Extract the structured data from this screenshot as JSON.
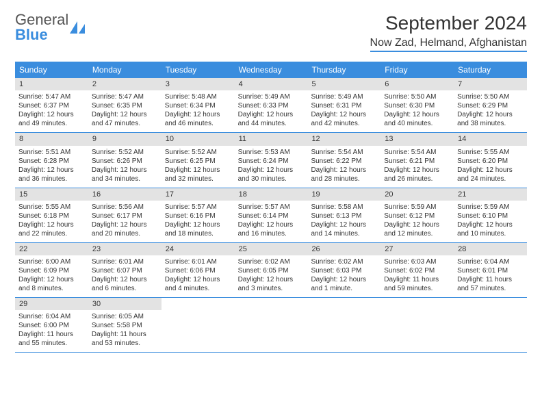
{
  "logo": {
    "text1": "General",
    "text2": "Blue"
  },
  "title": "September 2024",
  "location": "Now Zad, Helmand, Afghanistan",
  "colors": {
    "accent": "#3a8dde",
    "header_bg": "#3a8dde",
    "header_text": "#ffffff",
    "daynum_bg": "#e3e3e3",
    "text": "#333333",
    "background": "#ffffff"
  },
  "day_labels": [
    "Sunday",
    "Monday",
    "Tuesday",
    "Wednesday",
    "Thursday",
    "Friday",
    "Saturday"
  ],
  "calendar": {
    "type": "table",
    "weeks": [
      [
        {
          "n": "1",
          "sunrise": "Sunrise: 5:47 AM",
          "sunset": "Sunset: 6:37 PM",
          "day1": "Daylight: 12 hours",
          "day2": "and 49 minutes."
        },
        {
          "n": "2",
          "sunrise": "Sunrise: 5:47 AM",
          "sunset": "Sunset: 6:35 PM",
          "day1": "Daylight: 12 hours",
          "day2": "and 47 minutes."
        },
        {
          "n": "3",
          "sunrise": "Sunrise: 5:48 AM",
          "sunset": "Sunset: 6:34 PM",
          "day1": "Daylight: 12 hours",
          "day2": "and 46 minutes."
        },
        {
          "n": "4",
          "sunrise": "Sunrise: 5:49 AM",
          "sunset": "Sunset: 6:33 PM",
          "day1": "Daylight: 12 hours",
          "day2": "and 44 minutes."
        },
        {
          "n": "5",
          "sunrise": "Sunrise: 5:49 AM",
          "sunset": "Sunset: 6:31 PM",
          "day1": "Daylight: 12 hours",
          "day2": "and 42 minutes."
        },
        {
          "n": "6",
          "sunrise": "Sunrise: 5:50 AM",
          "sunset": "Sunset: 6:30 PM",
          "day1": "Daylight: 12 hours",
          "day2": "and 40 minutes."
        },
        {
          "n": "7",
          "sunrise": "Sunrise: 5:50 AM",
          "sunset": "Sunset: 6:29 PM",
          "day1": "Daylight: 12 hours",
          "day2": "and 38 minutes."
        }
      ],
      [
        {
          "n": "8",
          "sunrise": "Sunrise: 5:51 AM",
          "sunset": "Sunset: 6:28 PM",
          "day1": "Daylight: 12 hours",
          "day2": "and 36 minutes."
        },
        {
          "n": "9",
          "sunrise": "Sunrise: 5:52 AM",
          "sunset": "Sunset: 6:26 PM",
          "day1": "Daylight: 12 hours",
          "day2": "and 34 minutes."
        },
        {
          "n": "10",
          "sunrise": "Sunrise: 5:52 AM",
          "sunset": "Sunset: 6:25 PM",
          "day1": "Daylight: 12 hours",
          "day2": "and 32 minutes."
        },
        {
          "n": "11",
          "sunrise": "Sunrise: 5:53 AM",
          "sunset": "Sunset: 6:24 PM",
          "day1": "Daylight: 12 hours",
          "day2": "and 30 minutes."
        },
        {
          "n": "12",
          "sunrise": "Sunrise: 5:54 AM",
          "sunset": "Sunset: 6:22 PM",
          "day1": "Daylight: 12 hours",
          "day2": "and 28 minutes."
        },
        {
          "n": "13",
          "sunrise": "Sunrise: 5:54 AM",
          "sunset": "Sunset: 6:21 PM",
          "day1": "Daylight: 12 hours",
          "day2": "and 26 minutes."
        },
        {
          "n": "14",
          "sunrise": "Sunrise: 5:55 AM",
          "sunset": "Sunset: 6:20 PM",
          "day1": "Daylight: 12 hours",
          "day2": "and 24 minutes."
        }
      ],
      [
        {
          "n": "15",
          "sunrise": "Sunrise: 5:55 AM",
          "sunset": "Sunset: 6:18 PM",
          "day1": "Daylight: 12 hours",
          "day2": "and 22 minutes."
        },
        {
          "n": "16",
          "sunrise": "Sunrise: 5:56 AM",
          "sunset": "Sunset: 6:17 PM",
          "day1": "Daylight: 12 hours",
          "day2": "and 20 minutes."
        },
        {
          "n": "17",
          "sunrise": "Sunrise: 5:57 AM",
          "sunset": "Sunset: 6:16 PM",
          "day1": "Daylight: 12 hours",
          "day2": "and 18 minutes."
        },
        {
          "n": "18",
          "sunrise": "Sunrise: 5:57 AM",
          "sunset": "Sunset: 6:14 PM",
          "day1": "Daylight: 12 hours",
          "day2": "and 16 minutes."
        },
        {
          "n": "19",
          "sunrise": "Sunrise: 5:58 AM",
          "sunset": "Sunset: 6:13 PM",
          "day1": "Daylight: 12 hours",
          "day2": "and 14 minutes."
        },
        {
          "n": "20",
          "sunrise": "Sunrise: 5:59 AM",
          "sunset": "Sunset: 6:12 PM",
          "day1": "Daylight: 12 hours",
          "day2": "and 12 minutes."
        },
        {
          "n": "21",
          "sunrise": "Sunrise: 5:59 AM",
          "sunset": "Sunset: 6:10 PM",
          "day1": "Daylight: 12 hours",
          "day2": "and 10 minutes."
        }
      ],
      [
        {
          "n": "22",
          "sunrise": "Sunrise: 6:00 AM",
          "sunset": "Sunset: 6:09 PM",
          "day1": "Daylight: 12 hours",
          "day2": "and 8 minutes."
        },
        {
          "n": "23",
          "sunrise": "Sunrise: 6:01 AM",
          "sunset": "Sunset: 6:07 PM",
          "day1": "Daylight: 12 hours",
          "day2": "and 6 minutes."
        },
        {
          "n": "24",
          "sunrise": "Sunrise: 6:01 AM",
          "sunset": "Sunset: 6:06 PM",
          "day1": "Daylight: 12 hours",
          "day2": "and 4 minutes."
        },
        {
          "n": "25",
          "sunrise": "Sunrise: 6:02 AM",
          "sunset": "Sunset: 6:05 PM",
          "day1": "Daylight: 12 hours",
          "day2": "and 3 minutes."
        },
        {
          "n": "26",
          "sunrise": "Sunrise: 6:02 AM",
          "sunset": "Sunset: 6:03 PM",
          "day1": "Daylight: 12 hours",
          "day2": "and 1 minute."
        },
        {
          "n": "27",
          "sunrise": "Sunrise: 6:03 AM",
          "sunset": "Sunset: 6:02 PM",
          "day1": "Daylight: 11 hours",
          "day2": "and 59 minutes."
        },
        {
          "n": "28",
          "sunrise": "Sunrise: 6:04 AM",
          "sunset": "Sunset: 6:01 PM",
          "day1": "Daylight: 11 hours",
          "day2": "and 57 minutes."
        }
      ],
      [
        {
          "n": "29",
          "sunrise": "Sunrise: 6:04 AM",
          "sunset": "Sunset: 6:00 PM",
          "day1": "Daylight: 11 hours",
          "day2": "and 55 minutes."
        },
        {
          "n": "30",
          "sunrise": "Sunrise: 6:05 AM",
          "sunset": "Sunset: 5:58 PM",
          "day1": "Daylight: 11 hours",
          "day2": "and 53 minutes."
        },
        null,
        null,
        null,
        null,
        null
      ]
    ]
  }
}
